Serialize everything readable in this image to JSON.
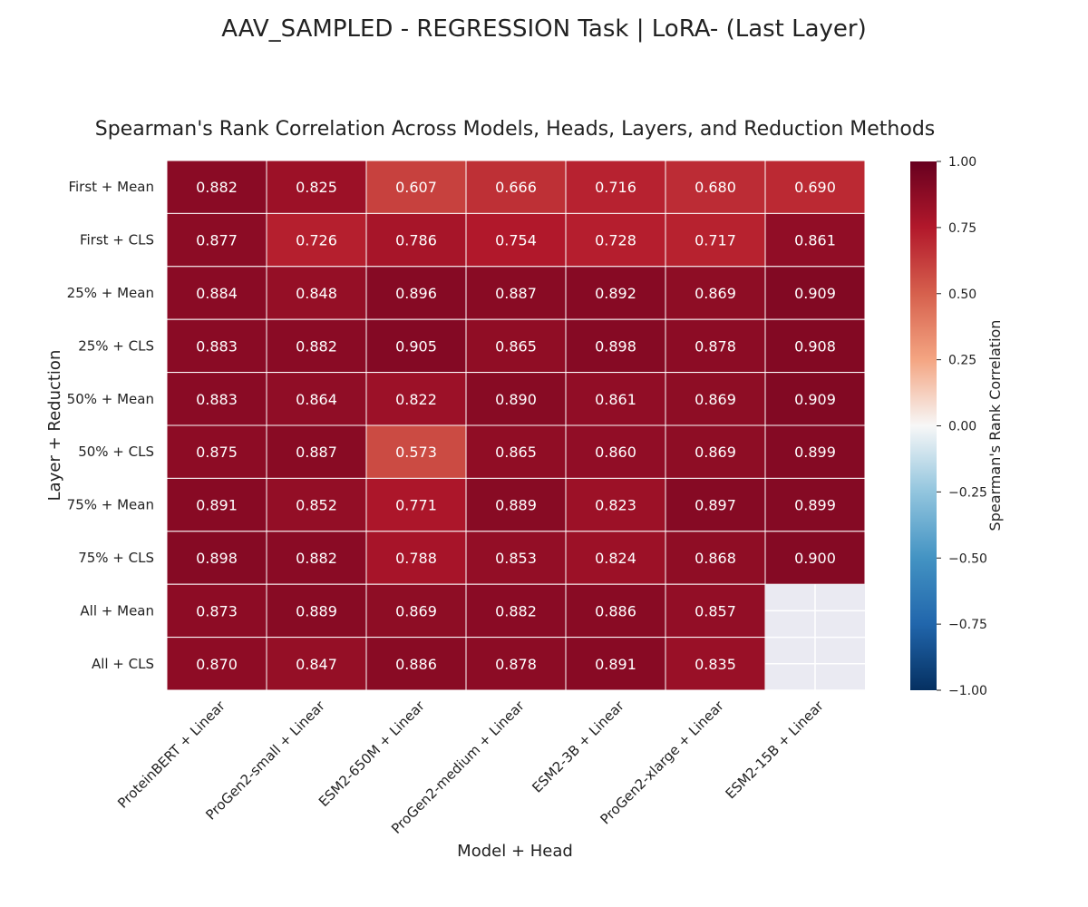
{
  "figure": {
    "suptitle": "AAV_SAMPLED - REGRESSION Task | LoRA- (Last Layer)"
  },
  "chart_data": {
    "type": "heatmap",
    "title": "Spearman's Rank Correlation Across Models, Heads, Layers, and Reduction Methods",
    "xlabel": "Model + Head",
    "ylabel": "Layer + Reduction",
    "columns": [
      "ProteinBERT + Linear",
      "ProGen2-small + Linear",
      "ESM2-650M + Linear",
      "ProGen2-medium + Linear",
      "ESM2-3B + Linear",
      "ProGen2-xlarge + Linear",
      "ESM2-15B + Linear"
    ],
    "rows": [
      "First + Mean",
      "First + CLS",
      "25% + Mean",
      "25% + CLS",
      "50% + Mean",
      "50% + CLS",
      "75% + Mean",
      "75% + CLS",
      "All + Mean",
      "All + CLS"
    ],
    "values": [
      [
        0.882,
        0.825,
        0.607,
        0.666,
        0.716,
        0.68,
        0.69
      ],
      [
        0.877,
        0.726,
        0.786,
        0.754,
        0.728,
        0.717,
        0.861
      ],
      [
        0.884,
        0.848,
        0.896,
        0.887,
        0.892,
        0.869,
        0.909
      ],
      [
        0.883,
        0.882,
        0.905,
        0.865,
        0.898,
        0.878,
        0.908
      ],
      [
        0.883,
        0.864,
        0.822,
        0.89,
        0.861,
        0.869,
        0.909
      ],
      [
        0.875,
        0.887,
        0.573,
        0.865,
        0.86,
        0.869,
        0.899
      ],
      [
        0.891,
        0.852,
        0.771,
        0.889,
        0.823,
        0.897,
        0.899
      ],
      [
        0.898,
        0.882,
        0.788,
        0.853,
        0.824,
        0.868,
        0.9
      ],
      [
        0.873,
        0.889,
        0.869,
        0.882,
        0.886,
        0.857,
        null
      ],
      [
        0.87,
        0.847,
        0.886,
        0.878,
        0.891,
        0.835,
        null
      ]
    ],
    "value_format": "0.000",
    "colormap": "RdBu_r",
    "vmin": -1.0,
    "vmax": 1.0,
    "missing_color": "#eaeaf2",
    "colorbar": {
      "label": "Spearman's Rank Correlation",
      "ticks": [
        1.0,
        0.75,
        0.5,
        0.25,
        0.0,
        -0.25,
        -0.5,
        -0.75,
        -1.0
      ],
      "tick_labels": [
        "1.00",
        "0.75",
        "0.50",
        "0.25",
        "0.00",
        "−0.25",
        "−0.50",
        "−0.75",
        "−1.00"
      ]
    }
  }
}
